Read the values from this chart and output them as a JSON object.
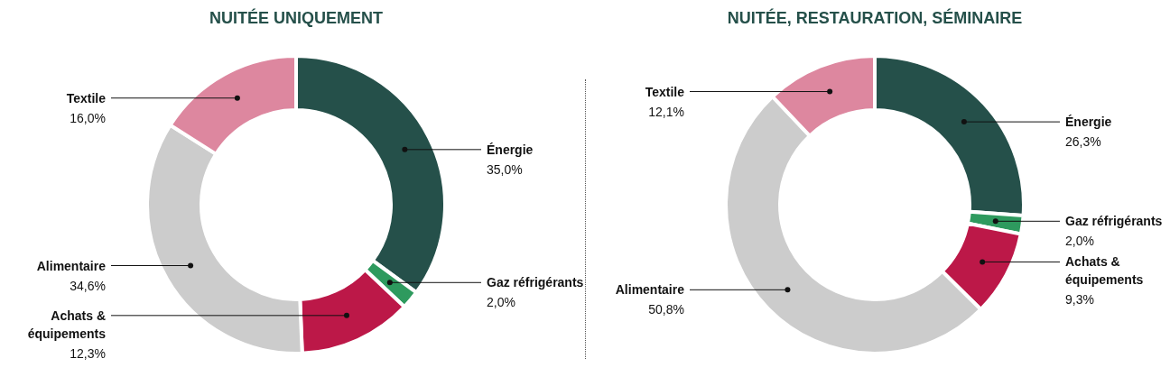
{
  "chart_data": [
    {
      "type": "donut",
      "title": "NUITÉE UNIQUEMENT",
      "categories": [
        "Énergie",
        "Gaz réfrigérants",
        "Achats & équipements",
        "Alimentaire",
        "Textile"
      ],
      "values": [
        35.0,
        2.0,
        12.3,
        34.6,
        16.0
      ],
      "colors": [
        "#25504a",
        "#2e9a5e",
        "#bc1848",
        "#cccccc",
        "#dd879f"
      ],
      "value_labels": [
        "35,0%",
        "2,0%",
        "12,3%",
        "34,6%",
        "16,0%"
      ],
      "legend": false
    },
    {
      "type": "donut",
      "title": "NUITÉE, RESTAURATION, SÉMINAIRE",
      "categories": [
        "Énergie",
        "Gaz réfrigérants",
        "Achats & équipements",
        "Alimentaire",
        "Textile"
      ],
      "values": [
        26.3,
        2.0,
        9.3,
        50.8,
        12.1
      ],
      "colors": [
        "#25504a",
        "#2e9a5e",
        "#bc1848",
        "#cccccc",
        "#dd879f"
      ],
      "value_labels": [
        "26,3%",
        "2,0%",
        "9,3%",
        "50,8%",
        "12,1%"
      ],
      "legend": false
    }
  ]
}
